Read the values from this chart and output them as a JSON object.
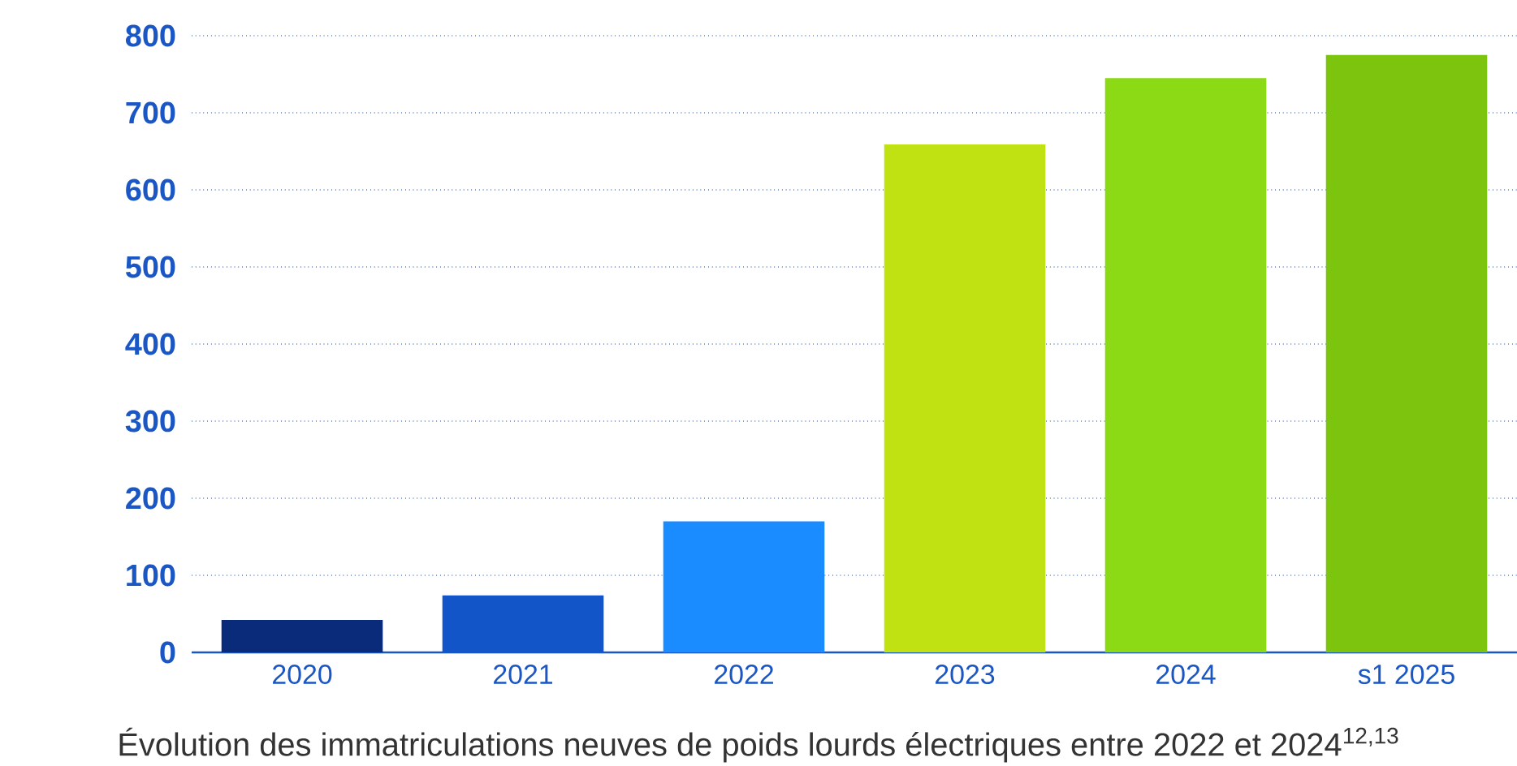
{
  "chart_data": {
    "type": "bar",
    "title": "Évolution des immatriculations neuves de poids lourds électriques entre 2022 et 2024$^{12,13}$",
    "categories": [
      "2020",
      "2021",
      "2022",
      "2023",
      "2024",
      "s1 2025"
    ],
    "values": [
      42,
      74,
      170,
      659,
      745,
      775
    ],
    "colors": [
      "#0a2a7a",
      "#1155c8",
      "#1a8cff",
      "#c0e212",
      "#8cd916",
      "#7dc40e"
    ],
    "ylim": [
      0,
      800
    ],
    "yticks": [
      0,
      100,
      200,
      300,
      400,
      500,
      600,
      700,
      800
    ],
    "grid": "y"
  }
}
